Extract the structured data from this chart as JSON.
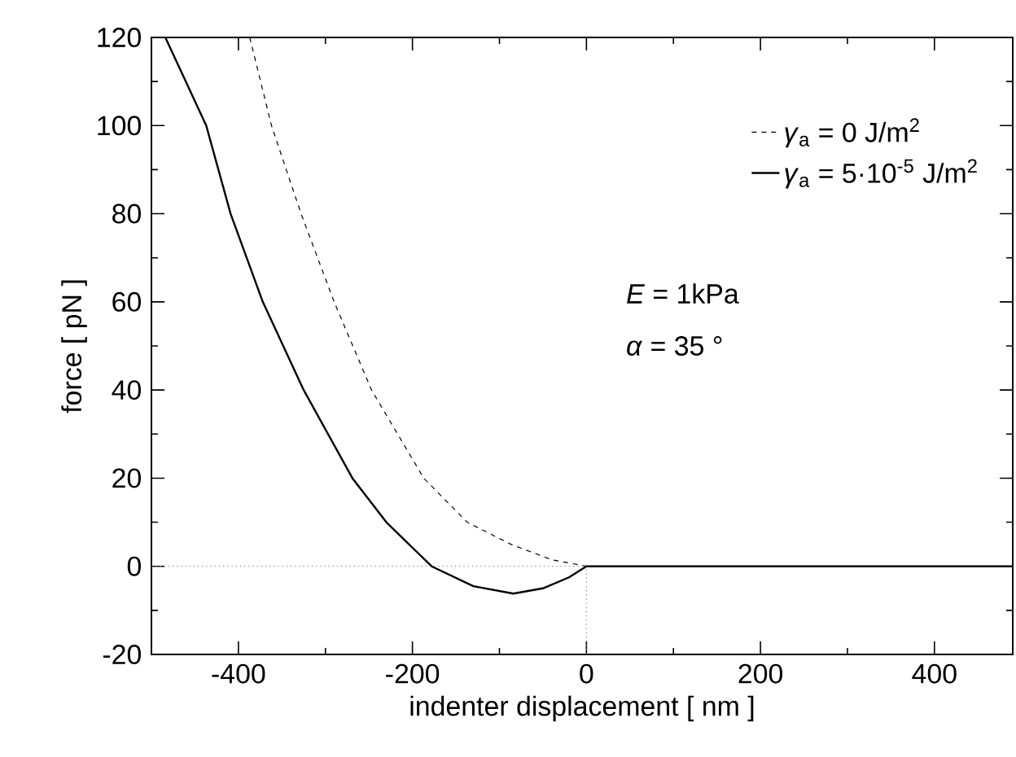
{
  "chart_data": {
    "type": "line",
    "xlabel": "indenter displacement [ nm ]",
    "ylabel": "force [ pN ]",
    "xlim": [
      -500,
      490
    ],
    "ylim": [
      -20,
      120
    ],
    "xticks": [
      -400,
      -200,
      0,
      200,
      400
    ],
    "yticks": [
      -20,
      0,
      20,
      40,
      60,
      80,
      100,
      120
    ],
    "legend": "top right",
    "grid": false,
    "series": [
      {
        "name": "*γ*$_{a}$ = 0 J/m$^{2}$",
        "color": "#000000",
        "line_style": "dashed",
        "x": [
          -387,
          -362,
          -328,
          -290,
          -247,
          -187,
          -137,
          -87,
          -40,
          0,
          490
        ],
        "values": [
          120,
          100,
          80,
          60,
          40,
          20,
          10,
          5,
          1.5,
          0,
          0
        ]
      },
      {
        "name": "*γ*$_{a}$ = 5·10$^{-5}$ J/m$^{2}$",
        "color": "#000000",
        "line_style": "solid",
        "x": [
          -484,
          -437,
          -409,
          -372,
          -325,
          -269,
          -230,
          -178,
          -130,
          -84,
          -50,
          -20,
          0,
          490
        ],
        "values": [
          120,
          100,
          80,
          60,
          40,
          20,
          10,
          0,
          -4.5,
          -6.2,
          -5,
          -2.5,
          0,
          0
        ]
      },
      {
        "color": "#808080",
        "line_style": "dotted",
        "x": [
          -500,
          0
        ],
        "values": [
          0,
          0
        ]
      },
      {
        "color": "#808080",
        "line_style": "dotted",
        "x": [
          0,
          0
        ],
        "values": [
          -20,
          0
        ]
      }
    ],
    "annotations": [
      "*E* = 1kPa",
      "*α* = 35 °"
    ]
  }
}
